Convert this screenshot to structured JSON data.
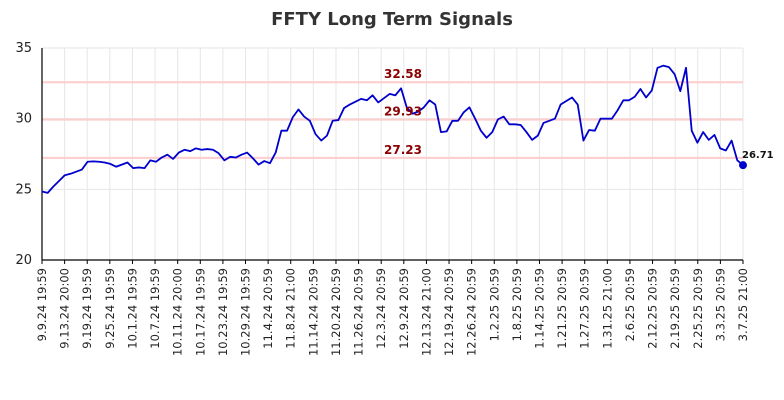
{
  "chart_data": {
    "type": "line",
    "title": "FFTY Long Term Signals",
    "xlabel": "",
    "ylabel": "",
    "ylim": [
      20,
      35
    ],
    "yticks": [
      20,
      25,
      30,
      35
    ],
    "grid": true,
    "x_tick_labels": [
      "9.9.24 19:59",
      "9.13.24 20:00",
      "9.19.24 19:59",
      "9.25.24 19:59",
      "10.1.24 19:59",
      "10.7.24 19:59",
      "10.11.24 20:00",
      "10.17.24 19:59",
      "10.23.24 19:59",
      "10.29.24 19:59",
      "11.4.24 20:59",
      "11.8.24 21:00",
      "11.14.24 20:59",
      "11.20.24 20:59",
      "11.26.24 20:59",
      "12.3.24 20:59",
      "12.9.24 20:59",
      "12.13.24 21:00",
      "12.19.24 20:59",
      "12.26.24 20:59",
      "1.2.25 20:59",
      "1.8.25 20:59",
      "1.14.25 20:59",
      "1.21.25 20:59",
      "1.27.25 20:59",
      "1.31.25 21:00",
      "2.6.25 20:59",
      "2.12.25 20:59",
      "2.19.25 20:59",
      "2.25.25 20:59",
      "3.3.25 20:59",
      "3.7.25 21:00"
    ],
    "series": [
      {
        "color": "#0000cc",
        "values": [
          24.85,
          24.75,
          25.2,
          25.6,
          26.0,
          26.1,
          26.25,
          26.4,
          26.95,
          26.98,
          26.95,
          26.9,
          26.8,
          26.6,
          26.75,
          26.9,
          26.5,
          26.55,
          26.5,
          27.05,
          26.95,
          27.25,
          27.45,
          27.15,
          27.6,
          27.8,
          27.7,
          27.9,
          27.8,
          27.85,
          27.8,
          27.55,
          27.05,
          27.3,
          27.25,
          27.45,
          27.6,
          27.2,
          26.75,
          27.0,
          26.85,
          27.6,
          29.15,
          29.15,
          30.1,
          30.65,
          30.15,
          29.85,
          28.9,
          28.45,
          28.8,
          29.85,
          29.9,
          30.75,
          31.0,
          31.2,
          31.4,
          31.3,
          31.65,
          31.15,
          31.45,
          31.75,
          31.65,
          32.15,
          30.8,
          30.35,
          30.5,
          30.8,
          31.3,
          31.0,
          29.05,
          29.1,
          29.85,
          29.85,
          30.45,
          30.8,
          30.0,
          29.15,
          28.65,
          29.05,
          29.95,
          30.15,
          29.6,
          29.6,
          29.55,
          29.05,
          28.5,
          28.8,
          29.7,
          29.85,
          30.0,
          31.0,
          31.25,
          31.5,
          31.0,
          28.45,
          29.2,
          29.15,
          30.0,
          30.0,
          30.0,
          30.6,
          31.3,
          31.3,
          31.55,
          32.1,
          31.5,
          32.0,
          33.6,
          33.75,
          33.65,
          33.15,
          31.95,
          33.6,
          29.15,
          28.3,
          29.05,
          28.5,
          28.85,
          27.9,
          27.75,
          28.45,
          27.05,
          26.71
        ]
      }
    ],
    "last_value": 26.71,
    "last_value_label": "26.71",
    "horizontal_lines": [
      {
        "value": 32.58,
        "label": "32.58",
        "color": "#ffcccc"
      },
      {
        "value": 29.93,
        "label": "29.93",
        "color": "#ffcccc"
      },
      {
        "value": 27.23,
        "label": "27.23",
        "color": "#ffcccc"
      }
    ],
    "colors": {
      "line": "#0000cc",
      "hline": "#ffcccc",
      "hlabel": "#8b0000",
      "grid": "#e6e6e6",
      "axis": "#000000"
    }
  }
}
